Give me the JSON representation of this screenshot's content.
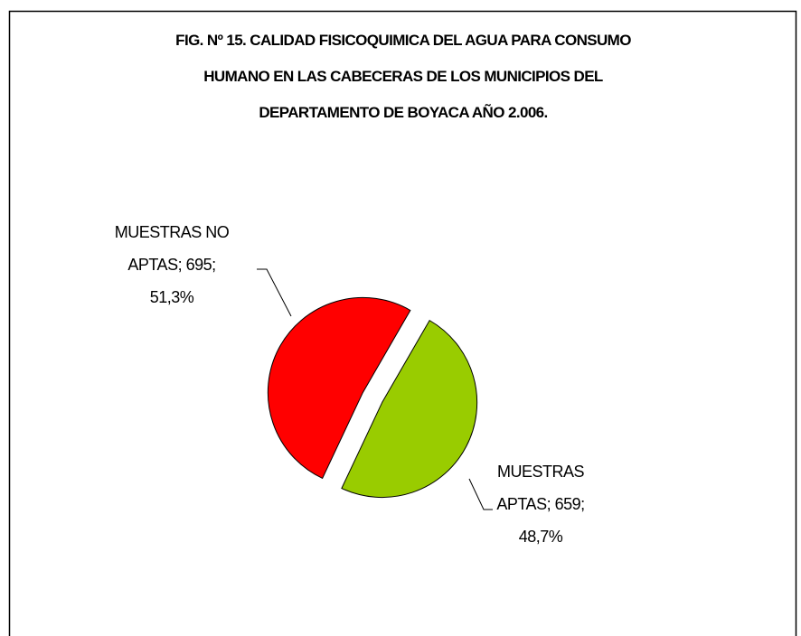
{
  "chart_data": {
    "type": "pie",
    "title": [
      "FIG. Nº 15. CALIDAD FISICOQUIMICA DEL AGUA PARA CONSUMO",
      "HUMANO EN LAS CABECERAS DE LOS MUNICIPIOS DEL",
      "DEPARTAMENTO DE BOYACA  AÑO 2.006."
    ],
    "values": [
      659,
      695
    ],
    "value_labels": [
      [
        "MUESTRAS",
        "APTAS; 659;",
        "48,7%"
      ],
      [
        "MUESTRAS NO",
        "APTAS; 695;",
        "51,3%"
      ]
    ],
    "colors": [
      "#99cc00",
      "#ff0000"
    ]
  }
}
